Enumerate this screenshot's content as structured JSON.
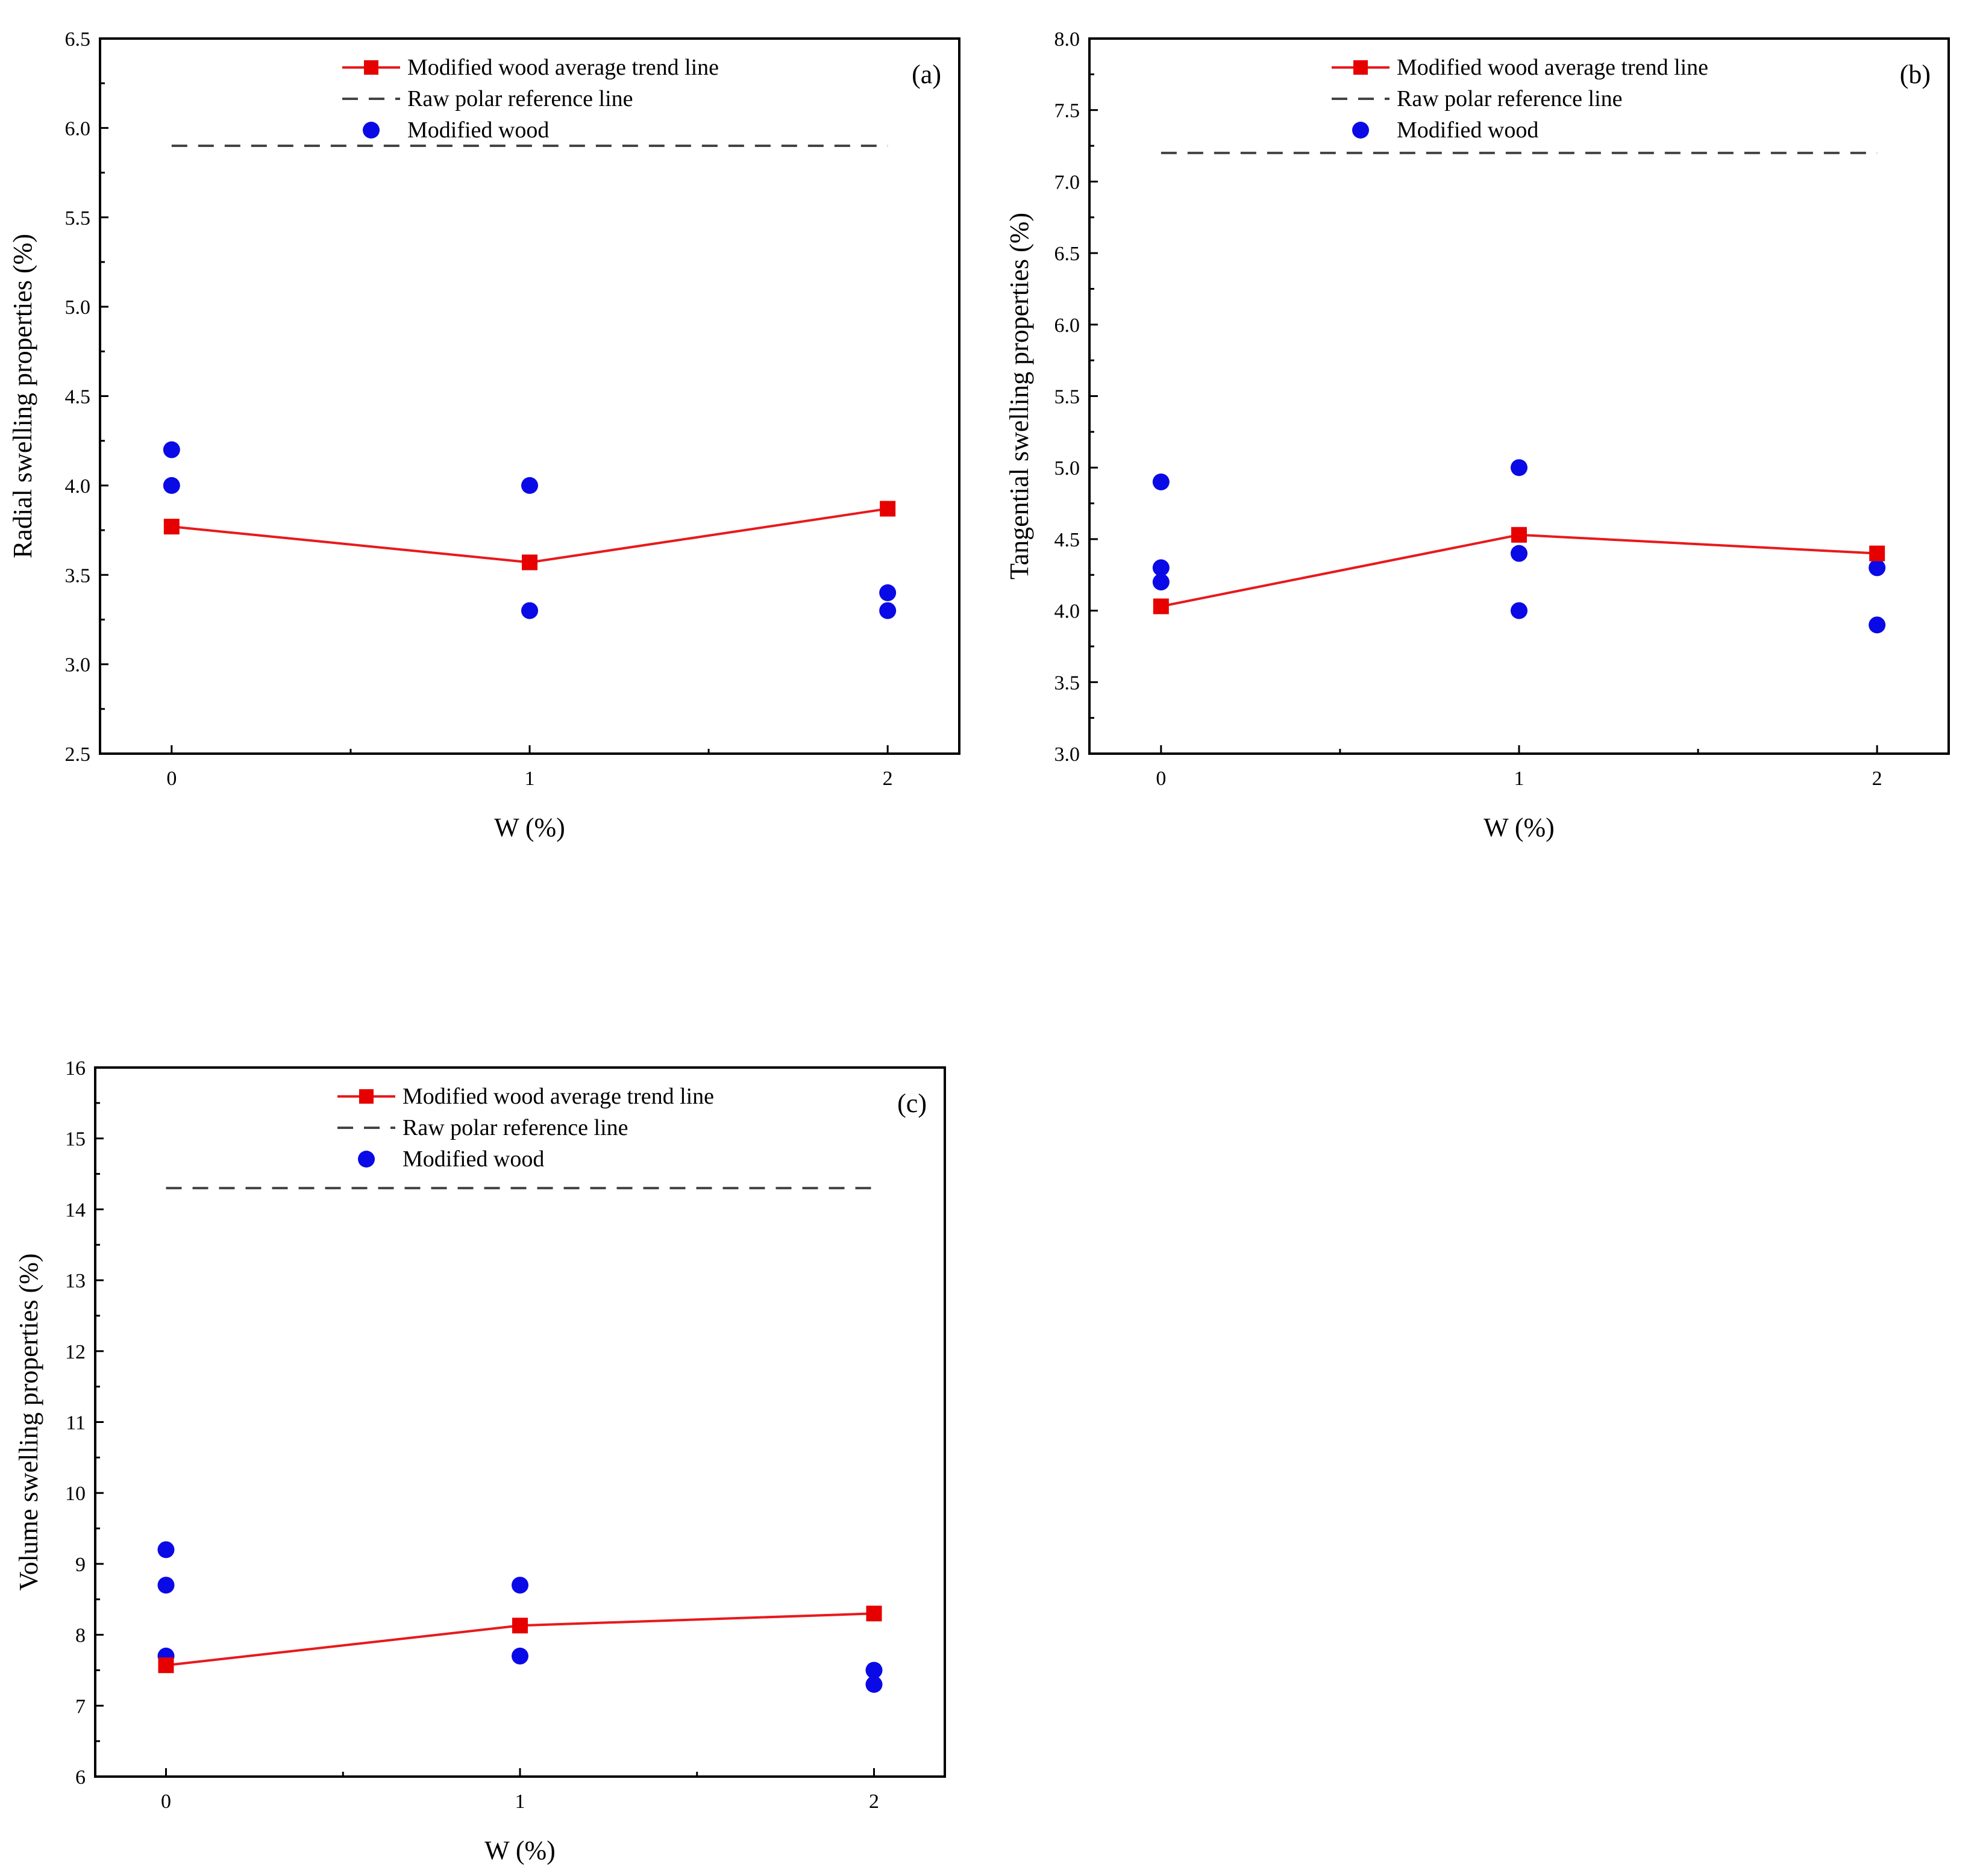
{
  "chart_data": [
    {
      "type": "line",
      "panel_label": "(a)",
      "xlabel": "W (%)",
      "ylabel": "Radial swelling properties (%)",
      "x_ticks": [
        "0",
        "1",
        "2"
      ],
      "xlim": [
        -0.2,
        2.2
      ],
      "ylim": [
        2.5,
        6.5
      ],
      "y_ticks": [
        "2.5",
        "3.0",
        "3.5",
        "4.0",
        "4.5",
        "5.0",
        "5.5",
        "6.0",
        "6.5"
      ],
      "legend": {
        "placement": "top-center",
        "trend": "Modified wood average trend line",
        "reference": "Raw polar reference line",
        "scatter": "Modified wood"
      },
      "average_trend": {
        "x": [
          0,
          1,
          2
        ],
        "y": [
          3.77,
          3.57,
          3.87
        ]
      },
      "reference_line": {
        "x": [
          0,
          2
        ],
        "y": 5.9
      },
      "modified_wood": {
        "x": [
          0,
          0,
          1,
          1,
          2,
          2
        ],
        "y": [
          4.2,
          4.0,
          4.0,
          3.3,
          3.4,
          3.3
        ]
      }
    },
    {
      "type": "line",
      "panel_label": "(b)",
      "xlabel": "W (%)",
      "ylabel": "Tangential swelling properties (%)",
      "x_ticks": [
        "0",
        "1",
        "2"
      ],
      "xlim": [
        -0.2,
        2.2
      ],
      "ylim": [
        3.0,
        8.0
      ],
      "y_ticks": [
        "3.0",
        "3.5",
        "4.0",
        "4.5",
        "5.0",
        "5.5",
        "6.0",
        "6.5",
        "7.0",
        "7.5",
        "8.0"
      ],
      "legend": {
        "placement": "top-center",
        "trend": "Modified wood average trend line",
        "reference": "Raw polar reference line",
        "scatter": "Modified wood"
      },
      "average_trend": {
        "x": [
          0,
          1,
          2
        ],
        "y": [
          4.03,
          4.53,
          4.4
        ]
      },
      "reference_line": {
        "x": [
          0,
          2
        ],
        "y": 7.2
      },
      "modified_wood": {
        "x": [
          0,
          0,
          0,
          1,
          1,
          1,
          2,
          2
        ],
        "y": [
          4.9,
          4.3,
          4.2,
          5.0,
          4.4,
          4.0,
          4.3,
          3.9
        ]
      }
    },
    {
      "type": "line",
      "panel_label": "(c)",
      "xlabel": "W (%)",
      "ylabel": "Volume swelling properties (%)",
      "x_ticks": [
        "0",
        "1",
        "2"
      ],
      "xlim": [
        -0.2,
        2.2
      ],
      "ylim": [
        6,
        16
      ],
      "y_ticks": [
        "6",
        "7",
        "8",
        "9",
        "10",
        "11",
        "12",
        "13",
        "14",
        "15",
        "16"
      ],
      "legend": {
        "placement": "top-center",
        "trend": "Modified wood average trend line",
        "reference": "Raw polar reference line",
        "scatter": "Modified wood"
      },
      "average_trend": {
        "x": [
          0,
          1,
          2
        ],
        "y": [
          7.57,
          8.13,
          8.3
        ]
      },
      "reference_line": {
        "x": [
          0,
          2
        ],
        "y": 14.3
      },
      "modified_wood": {
        "x": [
          0,
          0,
          0,
          1,
          1,
          2,
          2
        ],
        "y": [
          9.2,
          8.7,
          7.7,
          8.7,
          7.7,
          7.5,
          7.3
        ]
      }
    }
  ],
  "colors": {
    "trend": "#e8191c",
    "trend_marker": "#e60000",
    "scatter": "#0a0ae6",
    "reference": "#444444",
    "axis": "#000000"
  }
}
